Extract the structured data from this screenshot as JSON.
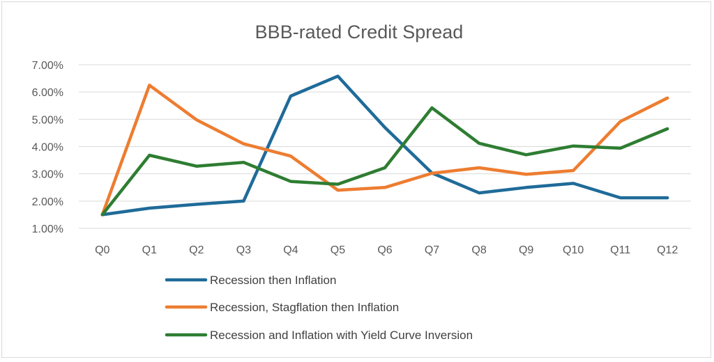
{
  "chart_data": {
    "type": "line",
    "title": "BBB-rated Credit Spread",
    "xlabel": "",
    "ylabel": "",
    "categories": [
      "Q0",
      "Q1",
      "Q2",
      "Q3",
      "Q4",
      "Q5",
      "Q6",
      "Q7",
      "Q8",
      "Q9",
      "Q10",
      "Q11",
      "Q12"
    ],
    "ylim": [
      1.0,
      7.0
    ],
    "yticks": [
      1,
      2,
      3,
      4,
      5,
      6,
      7
    ],
    "ytick_labels": [
      "1.00%",
      "2.00%",
      "3.00%",
      "4.00%",
      "5.00%",
      "6.00%",
      "7.00%"
    ],
    "grid": true,
    "legend_position": "bottom",
    "series": [
      {
        "name": "Recession then Inflation",
        "color": "#1f6b99",
        "values": [
          1.5,
          1.74,
          1.88,
          2.0,
          5.85,
          6.58,
          4.7,
          3.03,
          2.3,
          2.5,
          2.65,
          2.12,
          2.12
        ]
      },
      {
        "name": "Recession, Stagflation then Inflation",
        "color": "#ed7d31",
        "values": [
          1.5,
          6.25,
          4.98,
          4.1,
          3.65,
          2.4,
          2.5,
          3.02,
          3.22,
          2.98,
          3.12,
          4.92,
          5.78
        ]
      },
      {
        "name": "Recession and Inflation with Yield Curve Inversion",
        "color": "#2e7d32",
        "values": [
          1.5,
          3.68,
          3.28,
          3.42,
          2.72,
          2.62,
          3.22,
          5.42,
          4.12,
          3.7,
          4.02,
          3.94,
          4.65
        ]
      }
    ]
  }
}
